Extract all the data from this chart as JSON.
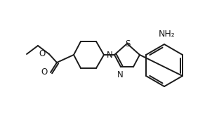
{
  "bg_color": "#ffffff",
  "line_color": "#1a1a1a",
  "line_width": 1.4,
  "font_size": 8.5,
  "atoms": {
    "NH2_label": "NH₂",
    "N_pip_label": "N",
    "N_thz_label": "N",
    "S_label": "S",
    "O1_label": "O",
    "O2_label": "O"
  }
}
